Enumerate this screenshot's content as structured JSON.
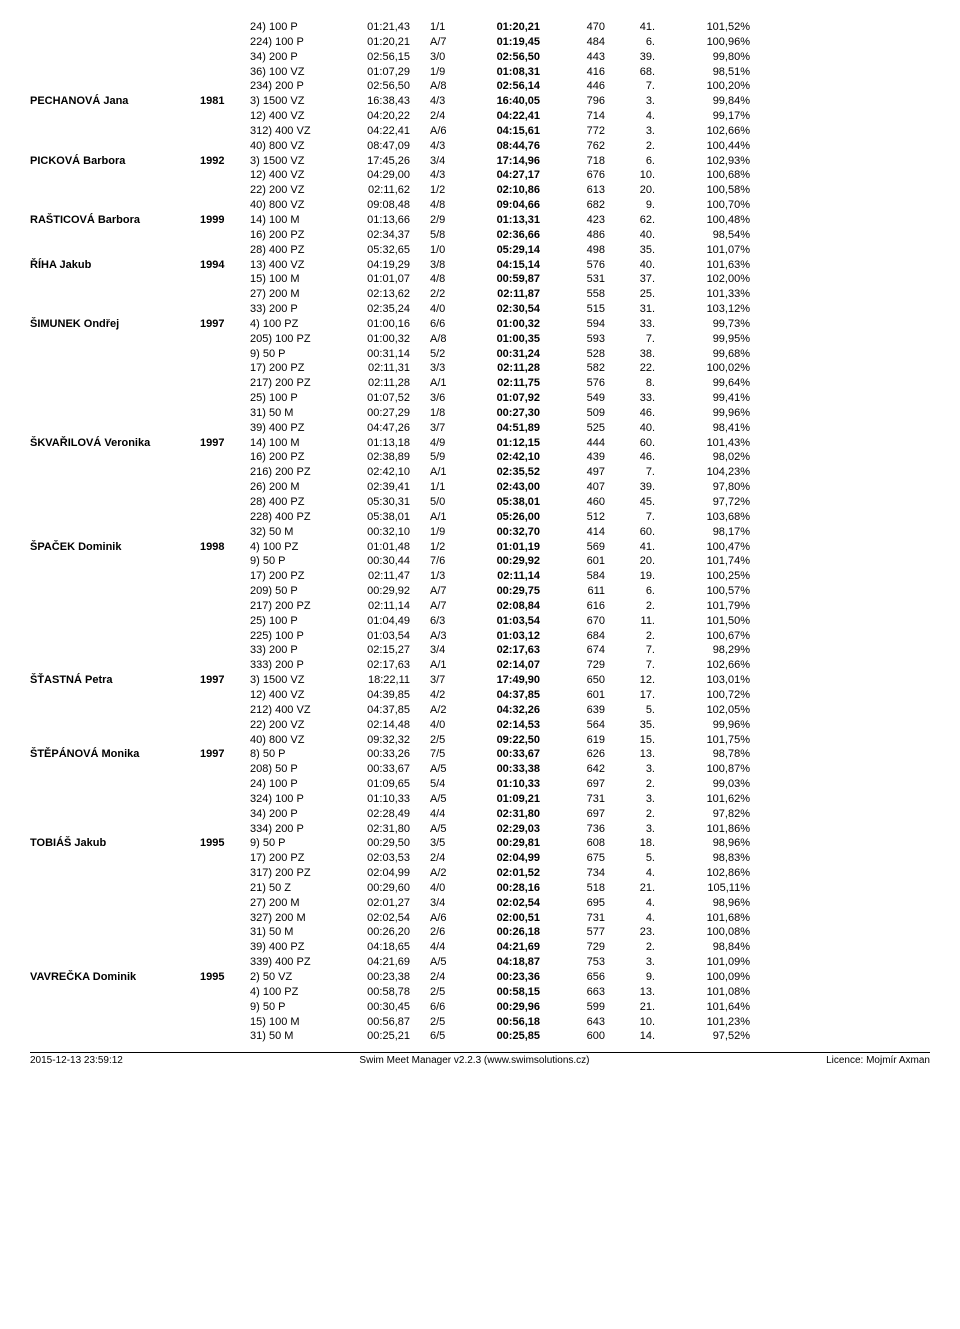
{
  "footer": {
    "left": "2015-12-13 23:59:12",
    "center": "Swim Meet Manager v2.2.3 (www.swimsolutions.cz)",
    "right": "Licence: Mojmír Axman"
  },
  "swimmers": [
    {
      "name": "",
      "year": "",
      "rows": [
        {
          "ev": "24) 100 P",
          "t1": "01:21,43",
          "h": "1/1",
          "t2": "01:20,21",
          "pts": "470",
          "rk": "41.",
          "pct": "101,52%"
        },
        {
          "ev": "224) 100 P",
          "t1": "01:20,21",
          "h": "A/7",
          "t2": "01:19,45",
          "pts": "484",
          "rk": "6.",
          "pct": "100,96%"
        },
        {
          "ev": "34) 200 P",
          "t1": "02:56,15",
          "h": "3/0",
          "t2": "02:56,50",
          "pts": "443",
          "rk": "39.",
          "pct": "99,80%"
        },
        {
          "ev": "36) 100 VZ",
          "t1": "01:07,29",
          "h": "1/9",
          "t2": "01:08,31",
          "pts": "416",
          "rk": "68.",
          "pct": "98,51%"
        },
        {
          "ev": "234) 200 P",
          "t1": "02:56,50",
          "h": "A/8",
          "t2": "02:56,14",
          "pts": "446",
          "rk": "7.",
          "pct": "100,20%"
        }
      ]
    },
    {
      "name": "PECHANOVÁ Jana",
      "year": "1981",
      "rows": [
        {
          "ev": "3) 1500 VZ",
          "t1": "16:38,43",
          "h": "4/3",
          "t2": "16:40,05",
          "pts": "796",
          "rk": "3.",
          "pct": "99,84%"
        },
        {
          "ev": "12) 400 VZ",
          "t1": "04:20,22",
          "h": "2/4",
          "t2": "04:22,41",
          "pts": "714",
          "rk": "4.",
          "pct": "99,17%"
        },
        {
          "ev": "312) 400 VZ",
          "t1": "04:22,41",
          "h": "A/6",
          "t2": "04:15,61",
          "pts": "772",
          "rk": "3.",
          "pct": "102,66%"
        },
        {
          "ev": "40) 800 VZ",
          "t1": "08:47,09",
          "h": "4/3",
          "t2": "08:44,76",
          "pts": "762",
          "rk": "2.",
          "pct": "100,44%"
        }
      ]
    },
    {
      "name": "PICKOVÁ Barbora",
      "year": "1992",
      "rows": [
        {
          "ev": "3) 1500 VZ",
          "t1": "17:45,26",
          "h": "3/4",
          "t2": "17:14,96",
          "pts": "718",
          "rk": "6.",
          "pct": "102,93%"
        },
        {
          "ev": "12) 400 VZ",
          "t1": "04:29,00",
          "h": "4/3",
          "t2": "04:27,17",
          "pts": "676",
          "rk": "10.",
          "pct": "100,68%"
        },
        {
          "ev": "22) 200 VZ",
          "t1": "02:11,62",
          "h": "1/2",
          "t2": "02:10,86",
          "pts": "613",
          "rk": "20.",
          "pct": "100,58%"
        },
        {
          "ev": "40) 800 VZ",
          "t1": "09:08,48",
          "h": "4/8",
          "t2": "09:04,66",
          "pts": "682",
          "rk": "9.",
          "pct": "100,70%"
        }
      ]
    },
    {
      "name": "RAŠTICOVÁ Barbora",
      "year": "1999",
      "rows": [
        {
          "ev": "14) 100 M",
          "t1": "01:13,66",
          "h": "2/9",
          "t2": "01:13,31",
          "pts": "423",
          "rk": "62.",
          "pct": "100,48%"
        },
        {
          "ev": "16) 200 PZ",
          "t1": "02:34,37",
          "h": "5/8",
          "t2": "02:36,66",
          "pts": "486",
          "rk": "40.",
          "pct": "98,54%"
        },
        {
          "ev": "28) 400 PZ",
          "t1": "05:32,65",
          "h": "1/0",
          "t2": "05:29,14",
          "pts": "498",
          "rk": "35.",
          "pct": "101,07%"
        }
      ]
    },
    {
      "name": "ŘÍHA Jakub",
      "year": "1994",
      "rows": [
        {
          "ev": "13) 400 VZ",
          "t1": "04:19,29",
          "h": "3/8",
          "t2": "04:15,14",
          "pts": "576",
          "rk": "40.",
          "pct": "101,63%"
        },
        {
          "ev": "15) 100 M",
          "t1": "01:01,07",
          "h": "4/8",
          "t2": "00:59,87",
          "pts": "531",
          "rk": "37.",
          "pct": "102,00%"
        },
        {
          "ev": "27) 200 M",
          "t1": "02:13,62",
          "h": "2/2",
          "t2": "02:11,87",
          "pts": "558",
          "rk": "25.",
          "pct": "101,33%"
        },
        {
          "ev": "33) 200 P",
          "t1": "02:35,24",
          "h": "4/0",
          "t2": "02:30,54",
          "pts": "515",
          "rk": "31.",
          "pct": "103,12%"
        }
      ]
    },
    {
      "name": "ŠIMUNEK Ondřej",
      "year": "1997",
      "rows": [
        {
          "ev": "4) 100 PZ",
          "t1": "01:00,16",
          "h": "6/6",
          "t2": "01:00,32",
          "pts": "594",
          "rk": "33.",
          "pct": "99,73%"
        },
        {
          "ev": "205) 100 PZ",
          "t1": "01:00,32",
          "h": "A/8",
          "t2": "01:00,35",
          "pts": "593",
          "rk": "7.",
          "pct": "99,95%"
        },
        {
          "ev": "9) 50 P",
          "t1": "00:31,14",
          "h": "5/2",
          "t2": "00:31,24",
          "pts": "528",
          "rk": "38.",
          "pct": "99,68%"
        },
        {
          "ev": "17) 200 PZ",
          "t1": "02:11,31",
          "h": "3/3",
          "t2": "02:11,28",
          "pts": "582",
          "rk": "22.",
          "pct": "100,02%"
        },
        {
          "ev": "217) 200 PZ",
          "t1": "02:11,28",
          "h": "A/1",
          "t2": "02:11,75",
          "pts": "576",
          "rk": "8.",
          "pct": "99,64%"
        },
        {
          "ev": "25) 100 P",
          "t1": "01:07,52",
          "h": "3/6",
          "t2": "01:07,92",
          "pts": "549",
          "rk": "33.",
          "pct": "99,41%"
        },
        {
          "ev": "31) 50 M",
          "t1": "00:27,29",
          "h": "1/8",
          "t2": "00:27,30",
          "pts": "509",
          "rk": "46.",
          "pct": "99,96%"
        },
        {
          "ev": "39) 400 PZ",
          "t1": "04:47,26",
          "h": "3/7",
          "t2": "04:51,89",
          "pts": "525",
          "rk": "40.",
          "pct": "98,41%"
        }
      ]
    },
    {
      "name": "ŠKVAŘILOVÁ Veronika",
      "year": "1997",
      "rows": [
        {
          "ev": "14) 100 M",
          "t1": "01:13,18",
          "h": "4/9",
          "t2": "01:12,15",
          "pts": "444",
          "rk": "60.",
          "pct": "101,43%"
        },
        {
          "ev": "16) 200 PZ",
          "t1": "02:38,89",
          "h": "5/9",
          "t2": "02:42,10",
          "pts": "439",
          "rk": "46.",
          "pct": "98,02%"
        },
        {
          "ev": "216) 200 PZ",
          "t1": "02:42,10",
          "h": "A/1",
          "t2": "02:35,52",
          "pts": "497",
          "rk": "7.",
          "pct": "104,23%"
        },
        {
          "ev": "26) 200 M",
          "t1": "02:39,41",
          "h": "1/1",
          "t2": "02:43,00",
          "pts": "407",
          "rk": "39.",
          "pct": "97,80%"
        },
        {
          "ev": "28) 400 PZ",
          "t1": "05:30,31",
          "h": "5/0",
          "t2": "05:38,01",
          "pts": "460",
          "rk": "45.",
          "pct": "97,72%"
        },
        {
          "ev": "228) 400 PZ",
          "t1": "05:38,01",
          "h": "A/1",
          "t2": "05:26,00",
          "pts": "512",
          "rk": "7.",
          "pct": "103,68%"
        },
        {
          "ev": "32) 50 M",
          "t1": "00:32,10",
          "h": "1/9",
          "t2": "00:32,70",
          "pts": "414",
          "rk": "60.",
          "pct": "98,17%"
        }
      ]
    },
    {
      "name": "ŠPAČEK Dominik",
      "year": "1998",
      "rows": [
        {
          "ev": "4) 100 PZ",
          "t1": "01:01,48",
          "h": "1/2",
          "t2": "01:01,19",
          "pts": "569",
          "rk": "41.",
          "pct": "100,47%"
        },
        {
          "ev": "9) 50 P",
          "t1": "00:30,44",
          "h": "7/6",
          "t2": "00:29,92",
          "pts": "601",
          "rk": "20.",
          "pct": "101,74%"
        },
        {
          "ev": "17) 200 PZ",
          "t1": "02:11,47",
          "h": "1/3",
          "t2": "02:11,14",
          "pts": "584",
          "rk": "19.",
          "pct": "100,25%"
        },
        {
          "ev": "209) 50 P",
          "t1": "00:29,92",
          "h": "A/7",
          "t2": "00:29,75",
          "pts": "611",
          "rk": "6.",
          "pct": "100,57%"
        },
        {
          "ev": "217) 200 PZ",
          "t1": "02:11,14",
          "h": "A/7",
          "t2": "02:08,84",
          "pts": "616",
          "rk": "2.",
          "pct": "101,79%"
        },
        {
          "ev": "25) 100 P",
          "t1": "01:04,49",
          "h": "6/3",
          "t2": "01:03,54",
          "pts": "670",
          "rk": "11.",
          "pct": "101,50%"
        },
        {
          "ev": "225) 100 P",
          "t1": "01:03,54",
          "h": "A/3",
          "t2": "01:03,12",
          "pts": "684",
          "rk": "2.",
          "pct": "100,67%"
        },
        {
          "ev": "33) 200 P",
          "t1": "02:15,27",
          "h": "3/4",
          "t2": "02:17,63",
          "pts": "674",
          "rk": "7.",
          "pct": "98,29%"
        },
        {
          "ev": "333) 200 P",
          "t1": "02:17,63",
          "h": "A/1",
          "t2": "02:14,07",
          "pts": "729",
          "rk": "7.",
          "pct": "102,66%"
        }
      ]
    },
    {
      "name": "ŠŤASTNÁ Petra",
      "year": "1997",
      "rows": [
        {
          "ev": "3) 1500 VZ",
          "t1": "18:22,11",
          "h": "3/7",
          "t2": "17:49,90",
          "pts": "650",
          "rk": "12.",
          "pct": "103,01%"
        },
        {
          "ev": "12) 400 VZ",
          "t1": "04:39,85",
          "h": "4/2",
          "t2": "04:37,85",
          "pts": "601",
          "rk": "17.",
          "pct": "100,72%"
        },
        {
          "ev": "212) 400 VZ",
          "t1": "04:37,85",
          "h": "A/2",
          "t2": "04:32,26",
          "pts": "639",
          "rk": "5.",
          "pct": "102,05%"
        },
        {
          "ev": "22) 200 VZ",
          "t1": "02:14,48",
          "h": "4/0",
          "t2": "02:14,53",
          "pts": "564",
          "rk": "35.",
          "pct": "99,96%"
        },
        {
          "ev": "40) 800 VZ",
          "t1": "09:32,32",
          "h": "2/5",
          "t2": "09:22,50",
          "pts": "619",
          "rk": "15.",
          "pct": "101,75%"
        }
      ]
    },
    {
      "name": "ŠTĚPÁNOVÁ Monika",
      "year": "1997",
      "rows": [
        {
          "ev": "8) 50 P",
          "t1": "00:33,26",
          "h": "7/5",
          "t2": "00:33,67",
          "pts": "626",
          "rk": "13.",
          "pct": "98,78%"
        },
        {
          "ev": "208) 50 P",
          "t1": "00:33,67",
          "h": "A/5",
          "t2": "00:33,38",
          "pts": "642",
          "rk": "3.",
          "pct": "100,87%"
        },
        {
          "ev": "24) 100 P",
          "t1": "01:09,65",
          "h": "5/4",
          "t2": "01:10,33",
          "pts": "697",
          "rk": "2.",
          "pct": "99,03%"
        },
        {
          "ev": "324) 100 P",
          "t1": "01:10,33",
          "h": "A/5",
          "t2": "01:09,21",
          "pts": "731",
          "rk": "3.",
          "pct": "101,62%"
        },
        {
          "ev": "34) 200 P",
          "t1": "02:28,49",
          "h": "4/4",
          "t2": "02:31,80",
          "pts": "697",
          "rk": "2.",
          "pct": "97,82%"
        },
        {
          "ev": "334) 200 P",
          "t1": "02:31,80",
          "h": "A/5",
          "t2": "02:29,03",
          "pts": "736",
          "rk": "3.",
          "pct": "101,86%"
        }
      ]
    },
    {
      "name": "TOBIÁŠ Jakub",
      "year": "1995",
      "rows": [
        {
          "ev": "9) 50 P",
          "t1": "00:29,50",
          "h": "3/5",
          "t2": "00:29,81",
          "pts": "608",
          "rk": "18.",
          "pct": "98,96%"
        },
        {
          "ev": "17) 200 PZ",
          "t1": "02:03,53",
          "h": "2/4",
          "t2": "02:04,99",
          "pts": "675",
          "rk": "5.",
          "pct": "98,83%"
        },
        {
          "ev": "317) 200 PZ",
          "t1": "02:04,99",
          "h": "A/2",
          "t2": "02:01,52",
          "pts": "734",
          "rk": "4.",
          "pct": "102,86%"
        },
        {
          "ev": "21) 50 Z",
          "t1": "00:29,60",
          "h": "4/0",
          "t2": "00:28,16",
          "pts": "518",
          "rk": "21.",
          "pct": "105,11%"
        },
        {
          "ev": "27) 200 M",
          "t1": "02:01,27",
          "h": "3/4",
          "t2": "02:02,54",
          "pts": "695",
          "rk": "4.",
          "pct": "98,96%"
        },
        {
          "ev": "327) 200 M",
          "t1": "02:02,54",
          "h": "A/6",
          "t2": "02:00,51",
          "pts": "731",
          "rk": "4.",
          "pct": "101,68%"
        },
        {
          "ev": "31) 50 M",
          "t1": "00:26,20",
          "h": "2/6",
          "t2": "00:26,18",
          "pts": "577",
          "rk": "23.",
          "pct": "100,08%"
        },
        {
          "ev": "39) 400 PZ",
          "t1": "04:18,65",
          "h": "4/4",
          "t2": "04:21,69",
          "pts": "729",
          "rk": "2.",
          "pct": "98,84%"
        },
        {
          "ev": "339) 400 PZ",
          "t1": "04:21,69",
          "h": "A/5",
          "t2": "04:18,87",
          "pts": "753",
          "rk": "3.",
          "pct": "101,09%"
        }
      ]
    },
    {
      "name": "VAVREČKA Dominik",
      "year": "1995",
      "rows": [
        {
          "ev": "2) 50 VZ",
          "t1": "00:23,38",
          "h": "2/4",
          "t2": "00:23,36",
          "pts": "656",
          "rk": "9.",
          "pct": "100,09%"
        },
        {
          "ev": "4) 100 PZ",
          "t1": "00:58,78",
          "h": "2/5",
          "t2": "00:58,15",
          "pts": "663",
          "rk": "13.",
          "pct": "101,08%"
        },
        {
          "ev": "9) 50 P",
          "t1": "00:30,45",
          "h": "6/6",
          "t2": "00:29,96",
          "pts": "599",
          "rk": "21.",
          "pct": "101,64%"
        },
        {
          "ev": "15) 100 M",
          "t1": "00:56,87",
          "h": "2/5",
          "t2": "00:56,18",
          "pts": "643",
          "rk": "10.",
          "pct": "101,23%"
        },
        {
          "ev": "31) 50 M",
          "t1": "00:25,21",
          "h": "6/5",
          "t2": "00:25,85",
          "pts": "600",
          "rk": "14.",
          "pct": "97,52%"
        }
      ]
    }
  ]
}
